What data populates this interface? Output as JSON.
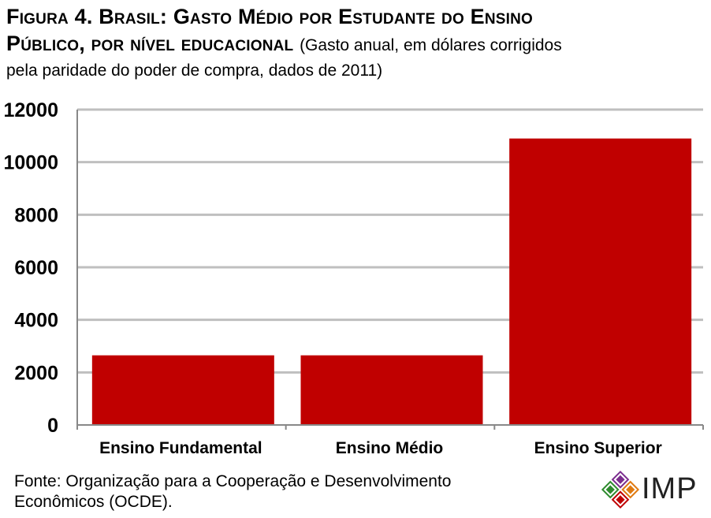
{
  "chart_data": {
    "type": "bar",
    "title": "Figura 4. Brasil: Gasto Médio por Estudante do Ensino Público, por nível educacional",
    "title_line1": "Figura 4. Brasil: Gasto Médio por Estudante do Ensino",
    "title_line2": "Público, por nível educacional",
    "subtitle_part1": "(Gasto anual, em dólares corrigidos",
    "subtitle_part2": "pela paridade do poder de compra, dados de 2011)",
    "categories": [
      "Ensino Fundamental",
      "Ensino Médio",
      "Ensino Superior"
    ],
    "values": [
      2650,
      2650,
      10900
    ],
    "ylim": [
      0,
      12000
    ],
    "yticks": [
      "0",
      "2000",
      "4000",
      "6000",
      "8000",
      "10000",
      "12000"
    ],
    "xlabel": "",
    "ylabel": "",
    "grid": true,
    "bar_color": "#c00000"
  },
  "footer": {
    "line1": "Fonte: Organização para a Cooperação  e Desenvolvimento",
    "line2": "Econômicos (OCDE)."
  },
  "logo": {
    "text": "IMP",
    "colors": [
      "#7b2d8e",
      "#2e8b2e",
      "#e07a10",
      "#c00000"
    ]
  }
}
